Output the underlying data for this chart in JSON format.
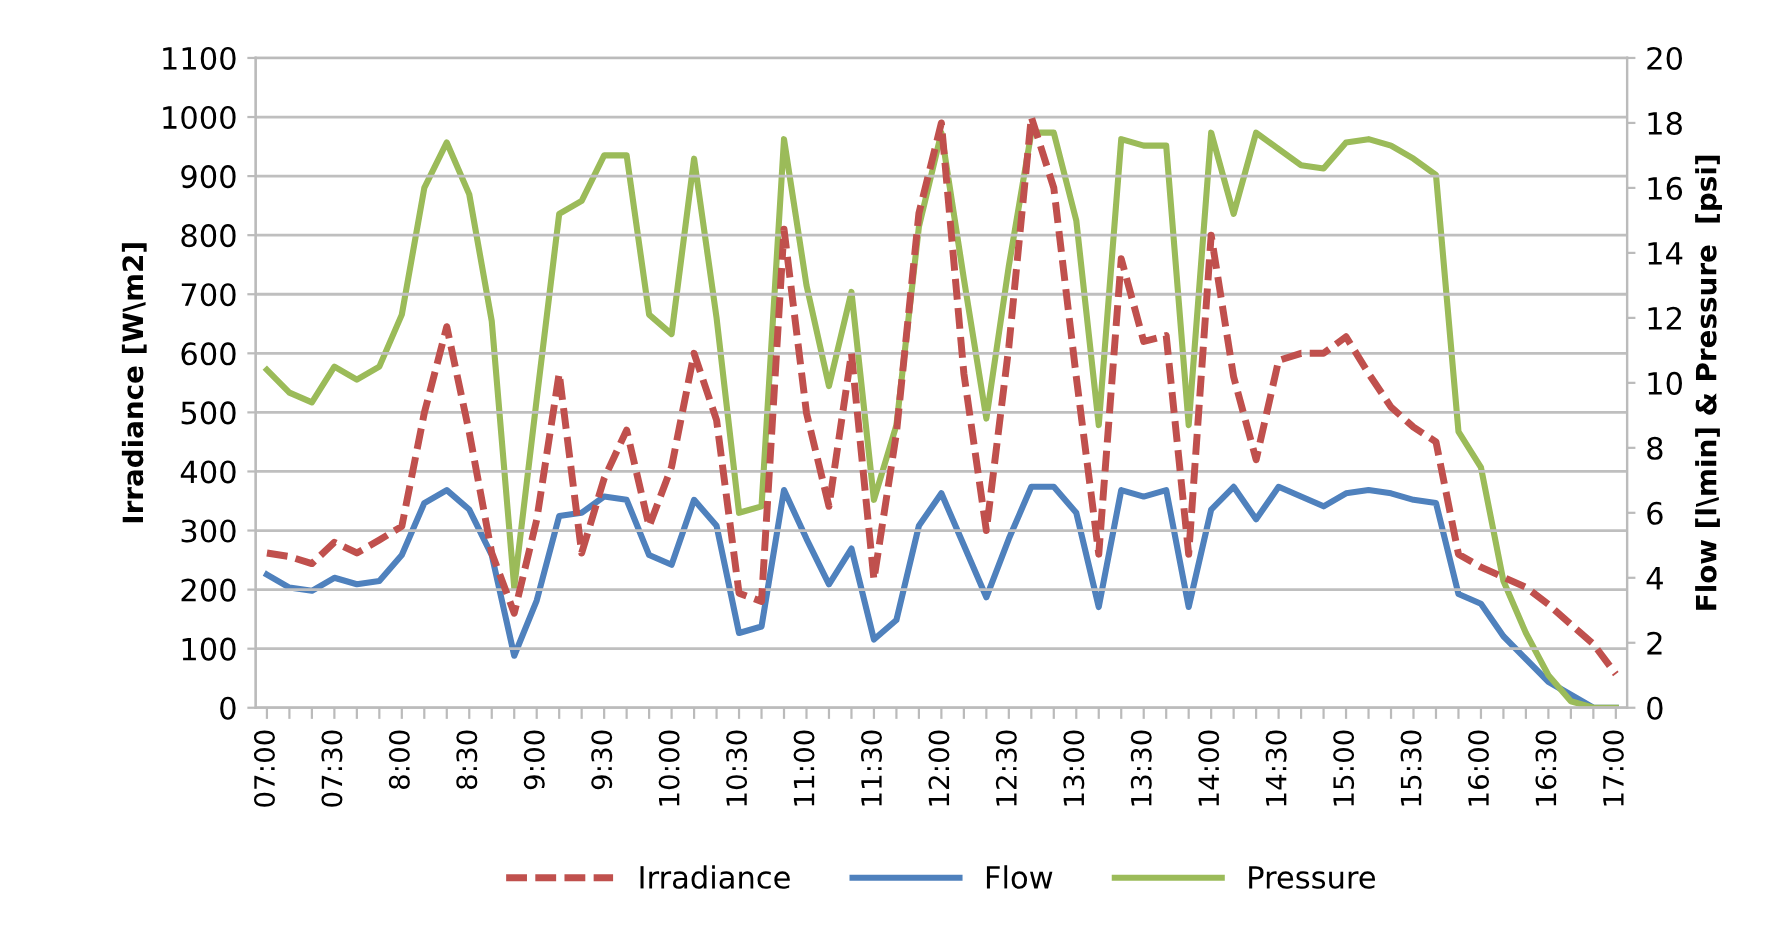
{
  "chart_data": {
    "type": "line",
    "ylabel": "Irradiance [W\\m2]",
    "y2label": "Flow [l\\min] & Pressure  [psi]",
    "categories": [
      "07:00",
      null,
      null,
      "07:30",
      null,
      null,
      "8:00",
      null,
      null,
      "8:30",
      null,
      null,
      "9:00",
      null,
      null,
      "9:30",
      null,
      null,
      "10:00",
      null,
      null,
      "10:30",
      null,
      null,
      "11:00",
      null,
      null,
      "11:30",
      null,
      null,
      "12:00",
      null,
      null,
      "12:30",
      null,
      null,
      "13:00",
      null,
      null,
      "13:30",
      null,
      null,
      "14:00",
      null,
      null,
      "14:30",
      null,
      null,
      "15:00",
      null,
      null,
      "15:30",
      null,
      null,
      "16:00",
      null,
      null,
      "16:30",
      null,
      null,
      "17:00"
    ],
    "series": [
      {
        "name": "Irradiance",
        "color": "#c0504d",
        "line_style": "dashed",
        "values": [
          262,
          256,
          244,
          280,
          262,
          284,
          307,
          499,
          645,
          466,
          262,
          160,
          318,
          566,
          262,
          388,
          470,
          307,
          408,
          600,
          487,
          194,
          180,
          810,
          499,
          341,
          600,
          217,
          465,
          837,
          990,
          566,
          300,
          611,
          1000,
          880,
          560,
          260,
          760,
          620,
          630,
          260,
          800,
          560,
          420,
          588,
          600,
          600,
          628,
          566,
          509,
          475,
          450,
          260,
          238,
          221,
          204,
          175,
          141,
          108,
          57
        ]
      },
      {
        "name": "Flow",
        "color": "#4f81bd",
        "line_style": "solid",
        "axis": "y2",
        "values": [
          4.1,
          3.7,
          3.6,
          4.0,
          3.8,
          3.9,
          4.7,
          6.3,
          6.7,
          6.1,
          4.7,
          1.6,
          3.3,
          5.9,
          6.0,
          6.5,
          6.4,
          4.7,
          4.4,
          6.4,
          5.6,
          2.3,
          2.5,
          6.7,
          5.2,
          3.8,
          4.9,
          2.1,
          2.7,
          5.6,
          6.6,
          5.0,
          3.4,
          5.2,
          6.8,
          6.8,
          6.0,
          3.1,
          6.7,
          6.5,
          6.7,
          3.1,
          6.1,
          6.8,
          5.8,
          6.8,
          6.5,
          6.2,
          6.6,
          6.7,
          6.6,
          6.4,
          6.3,
          3.5,
          3.2,
          2.2,
          1.5,
          0.8,
          0.4,
          0,
          0
        ]
      },
      {
        "name": "Pressure",
        "color": "#9bbb59",
        "line_style": "solid",
        "axis": "y2",
        "values": [
          10.4,
          9.7,
          9.4,
          10.5,
          10.1,
          10.5,
          12.1,
          16.0,
          17.4,
          15.8,
          11.9,
          3.7,
          9.5,
          15.2,
          15.6,
          17.0,
          17.0,
          12.1,
          11.5,
          16.9,
          12.0,
          6.0,
          6.2,
          17.5,
          13.0,
          9.9,
          12.8,
          6.4,
          8.7,
          14.8,
          17.7,
          13.2,
          8.9,
          13.6,
          17.7,
          17.7,
          15.0,
          8.7,
          17.5,
          17.3,
          17.3,
          8.7,
          17.7,
          15.2,
          17.7,
          17.2,
          16.7,
          16.6,
          17.4,
          17.5,
          17.3,
          16.9,
          16.4,
          8.5,
          7.4,
          3.9,
          2.3,
          1.0,
          0.2,
          0,
          0
        ]
      }
    ],
    "ylim": [
      0,
      1100
    ],
    "yticks": [
      0,
      100,
      200,
      300,
      400,
      500,
      600,
      700,
      800,
      900,
      1000,
      1100
    ],
    "y2lim": [
      0,
      20
    ],
    "y2ticks": [
      0,
      2,
      4,
      6,
      8,
      10,
      12,
      14,
      16,
      18,
      20
    ],
    "grid": "y",
    "legend": "bottom",
    "marker": "none"
  }
}
